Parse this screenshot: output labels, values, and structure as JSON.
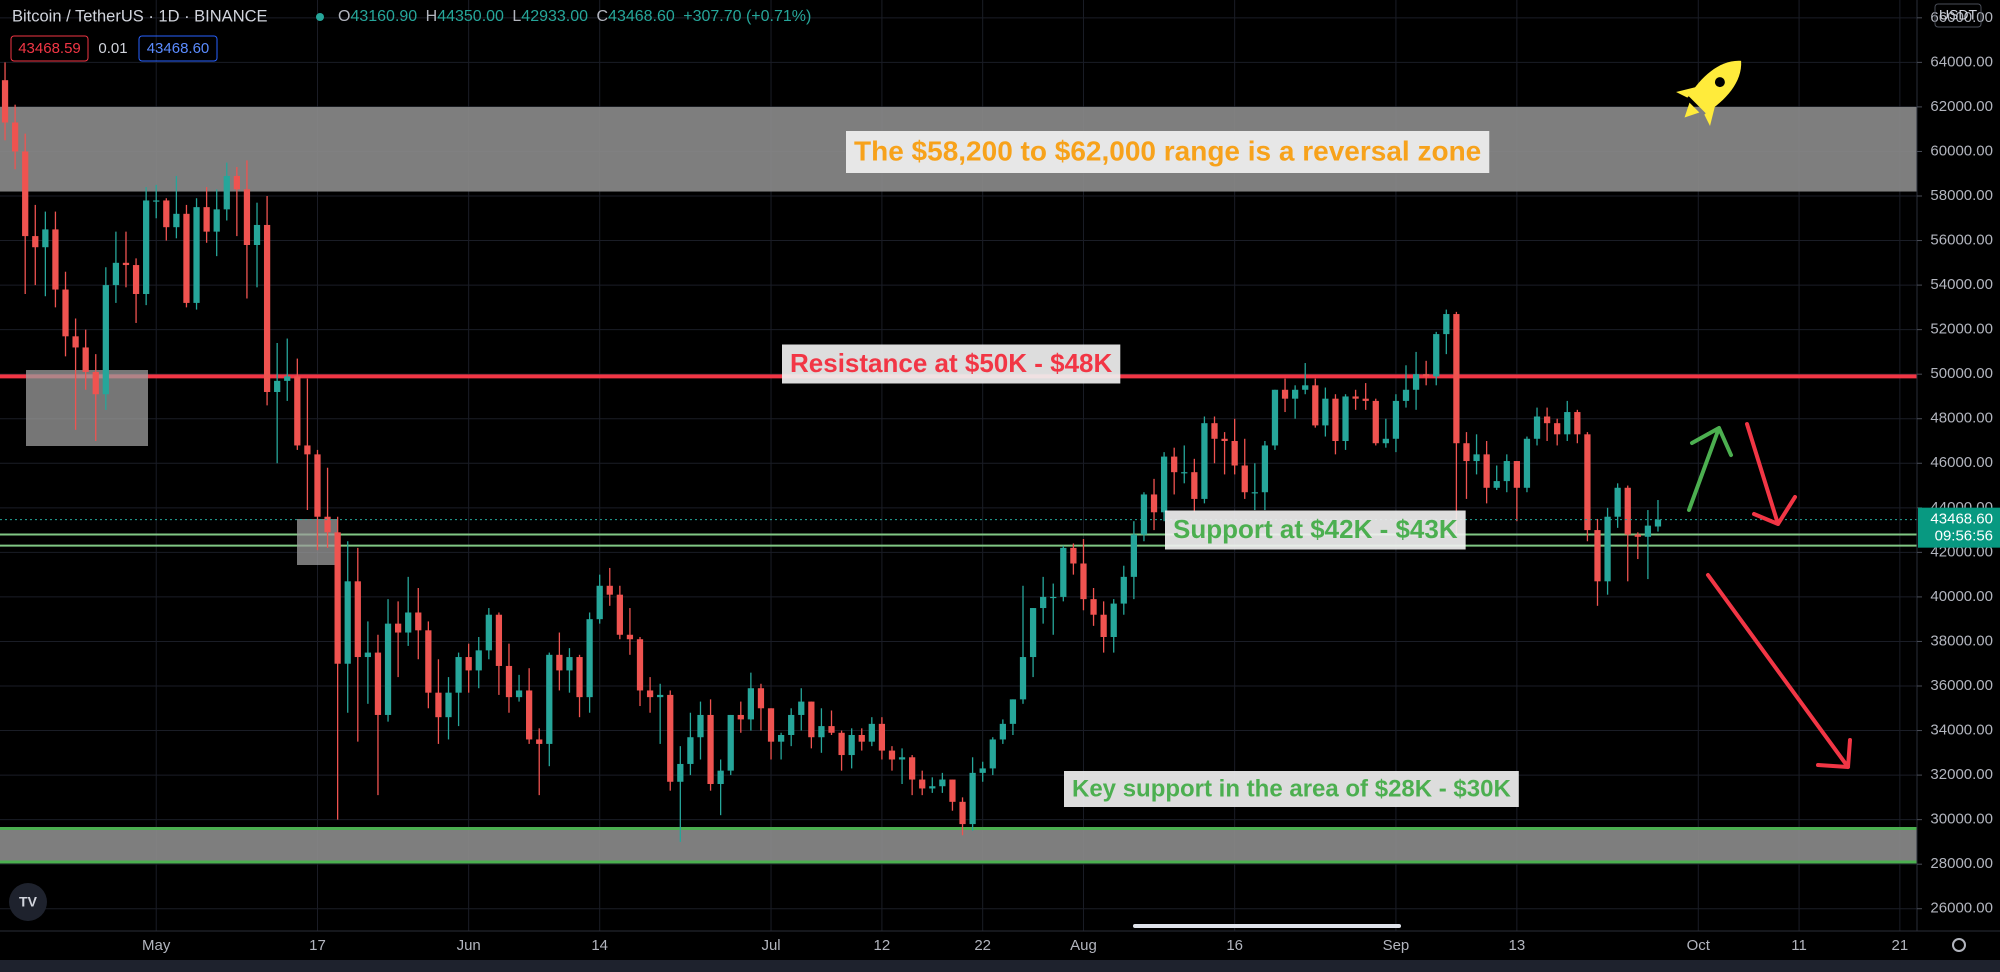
{
  "header": {
    "symbol": "Bitcoin / TetherUS · 1D · BINANCE",
    "ohlc": [
      {
        "label": "O",
        "value": "43160.90"
      },
      {
        "label": "H",
        "value": "44350.00"
      },
      {
        "label": "L",
        "value": "42933.00"
      },
      {
        "label": "C",
        "value": "43468.60"
      }
    ],
    "change": "+307.70 (+0.71%)",
    "badges": [
      "43468.59",
      "0.01",
      "43468.60"
    ]
  },
  "price_axis": {
    "currency": "USDT",
    "last_price": "43468.60",
    "countdown": "09:56:56"
  },
  "chart_data": {
    "type": "candlestick",
    "up_color": "#26a69a",
    "down_color": "#ef5350",
    "xlim": [
      -0.5,
      189.7
    ],
    "xticks": [
      {
        "value": 15,
        "label": "May"
      },
      {
        "value": 31,
        "label": "17"
      },
      {
        "value": 46,
        "label": "Jun"
      },
      {
        "value": 59,
        "label": "14"
      },
      {
        "value": 76,
        "label": "Jul"
      },
      {
        "value": 87,
        "label": "12"
      },
      {
        "value": 97,
        "label": "22"
      },
      {
        "value": 107,
        "label": "Aug"
      },
      {
        "value": 122,
        "label": "16"
      },
      {
        "value": 138,
        "label": "Sep"
      },
      {
        "value": 150,
        "label": "13"
      },
      {
        "value": 168,
        "label": "Oct"
      },
      {
        "value": 178,
        "label": "11"
      },
      {
        "value": 188,
        "label": "21"
      }
    ],
    "ylim": [
      25000,
      66800
    ],
    "yticks": [
      {
        "value": 26000,
        "label": "26000.00"
      },
      {
        "value": 28000,
        "label": "28000.00"
      },
      {
        "value": 30000,
        "label": "30000.00"
      },
      {
        "value": 32000,
        "label": "32000.00"
      },
      {
        "value": 34000,
        "label": "34000.00"
      },
      {
        "value": 36000,
        "label": "36000.00"
      },
      {
        "value": 38000,
        "label": "38000.00"
      },
      {
        "value": 40000,
        "label": "40000.00"
      },
      {
        "value": 42000,
        "label": "42000.00"
      },
      {
        "value": 44000,
        "label": "44000.00"
      },
      {
        "value": 46000,
        "label": "46000.00"
      },
      {
        "value": 48000,
        "label": "48000.00"
      },
      {
        "value": 50000,
        "label": "50000.00"
      },
      {
        "value": 52000,
        "label": "52000.00"
      },
      {
        "value": 54000,
        "label": "54000.00"
      },
      {
        "value": 56000,
        "label": "56000.00"
      },
      {
        "value": 58000,
        "label": "58000.00"
      },
      {
        "value": 60000,
        "label": "60000.00"
      },
      {
        "value": 62000,
        "label": "62000.00"
      },
      {
        "value": 64000,
        "label": "64000.00"
      },
      {
        "value": 66000,
        "label": "66000.00"
      }
    ],
    "grid": true,
    "zones": [
      {
        "low": 58200,
        "high": 62000
      },
      {
        "low": 28100,
        "high": 29600,
        "color": "#4caf50"
      }
    ],
    "levels": [
      {
        "value": 49900,
        "color": "#f23645"
      },
      {
        "value": 42800,
        "color": "#81c784"
      },
      {
        "value": 42300,
        "color": "#81c784"
      }
    ],
    "annotations": [
      {
        "text": "The $58,200 to $62,000 range is a reversal zone",
        "color": "#f7a21b"
      },
      {
        "text": "Resistance at $50K - $48K",
        "color": "#f23645"
      },
      {
        "text": "Support at $42K - $43K",
        "color": "#4caf50"
      },
      {
        "text": "Key support in the area of $28K - $30K",
        "color": "#4caf50"
      }
    ],
    "open": [
      63200,
      61300,
      60000,
      56200,
      55700,
      56500,
      53800,
      51700,
      51200,
      50100,
      49100,
      54000,
      55000,
      54900,
      53600,
      57800,
      57800,
      56600,
      57200,
      53200,
      57500,
      56400,
      57400,
      58900,
      58300,
      55800,
      56700,
      49200,
      49700,
      49900,
      46800,
      46400,
      43600,
      42900,
      37000,
      40700,
      37300,
      37500,
      34700,
      38800,
      38400,
      39300,
      38500,
      35700,
      34600,
      35700,
      37300,
      36700,
      37600,
      39200,
      36900,
      35500,
      35800,
      33600,
      33400,
      37400,
      36700,
      37300,
      35500,
      39000,
      40500,
      40100,
      38300,
      38100,
      35800,
      35500,
      35600,
      31700,
      32500,
      33700,
      34700,
      31600,
      32200,
      34700,
      34500,
      35900,
      35000,
      33500,
      33800,
      34700,
      35300,
      33700,
      34200,
      33900,
      32900,
      33800,
      33500,
      34300,
      33100,
      32700,
      32800,
      31800,
      31400,
      31500,
      31800,
      30800,
      29800,
      32100,
      32300,
      33600,
      34300,
      35400,
      37300,
      39500,
      40000,
      40000,
      42200,
      41500,
      39900,
      39200,
      38200,
      39700,
      40900,
      42800,
      44600,
      43800,
      46300,
      45600,
      45600,
      44400,
      47800,
      47100,
      47000,
      45900,
      44700,
      44700,
      46800,
      49300,
      48900,
      49300,
      49500,
      47700,
      48900,
      47000,
      49000,
      48900,
      48800,
      46900,
      47100,
      48800,
      49300,
      50000,
      49900,
      51800,
      52700,
      46900,
      46100,
      46400,
      44900,
      45200,
      46100,
      44900,
      47100,
      48100,
      47800,
      47300,
      48300,
      47300,
      43000,
      40700,
      43600,
      44900,
      42800,
      42700,
      43160.9
    ],
    "high": [
      64000,
      62100,
      60800,
      57600,
      57300,
      57300,
      54600,
      52500,
      52000,
      50900,
      54800,
      56400,
      56400,
      55200,
      58400,
      58500,
      57900,
      58900,
      57600,
      57900,
      58400,
      58300,
      59500,
      59300,
      59600,
      57700,
      58000,
      51400,
      51600,
      50700,
      49800,
      46600,
      45800,
      43600,
      42500,
      42200,
      38900,
      38300,
      39900,
      39800,
      40900,
      40400,
      38900,
      37200,
      36400,
      37500,
      37900,
      38200,
      39500,
      39300,
      37900,
      36500,
      36800,
      34100,
      37500,
      38400,
      37700,
      37400,
      39300,
      41000,
      41300,
      40500,
      39500,
      38200,
      36400,
      36100,
      35800,
      33300,
      34800,
      35300,
      35400,
      32700,
      34700,
      35300,
      36600,
      36100,
      35000,
      33900,
      35000,
      35900,
      35300,
      35000,
      34900,
      34000,
      34100,
      34100,
      34600,
      34600,
      33300,
      33200,
      32900,
      32200,
      31900,
      32100,
      31800,
      31000,
      32800,
      32600,
      33700,
      34500,
      35400,
      40500,
      39500,
      40900,
      40600,
      42300,
      42400,
      42600,
      40400,
      39800,
      39900,
      41400,
      43400,
      44700,
      45300,
      46500,
      46700,
      46800,
      46200,
      48100,
      48100,
      47400,
      48000,
      47100,
      46000,
      47000,
      49300,
      49800,
      49500,
      50500,
      49800,
      49400,
      49100,
      49100,
      49300,
      49600,
      48900,
      48000,
      49100,
      50400,
      51000,
      50600,
      51900,
      52900,
      52800,
      47400,
      47300,
      47000,
      45900,
      46400,
      46100,
      47200,
      48500,
      48500,
      48000,
      48800,
      48400,
      47400,
      43500,
      44000,
      45100,
      45000,
      42900,
      43900,
      44350
    ],
    "low": [
      60500,
      59200,
      53600,
      54000,
      53500,
      53000,
      50800,
      47500,
      49300,
      47000,
      48400,
      53200,
      53900,
      52300,
      53100,
      57000,
      56000,
      56100,
      53000,
      52900,
      55900,
      55300,
      56900,
      56200,
      53400,
      53900,
      48600,
      46000,
      48800,
      46600,
      43900,
      42100,
      42200,
      30000,
      34800,
      33500,
      35200,
      31100,
      34400,
      36400,
      37800,
      37200,
      35000,
      33400,
      33600,
      34200,
      35700,
      35900,
      37200,
      35600,
      34800,
      35300,
      33400,
      31100,
      32400,
      35800,
      35700,
      34600,
      34800,
      38800,
      39600,
      38100,
      37400,
      35100,
      34800,
      33400,
      31300,
      29000,
      32000,
      32700,
      31300,
      30200,
      32000,
      33900,
      34000,
      34000,
      32700,
      32700,
      33300,
      34000,
      33200,
      33000,
      33800,
      32200,
      32300,
      33100,
      33300,
      32700,
      32200,
      31600,
      31100,
      31100,
      31200,
      31200,
      30400,
      29300,
      29500,
      31700,
      32000,
      33400,
      33800,
      35200,
      36400,
      38800,
      38300,
      39800,
      41000,
      39400,
      38700,
      37500,
      37500,
      39200,
      39900,
      42500,
      43000,
      43400,
      44600,
      45100,
      43800,
      44200,
      46000,
      45500,
      45500,
      44400,
      43900,
      43900,
      46600,
      48300,
      48000,
      49100,
      47600,
      47200,
      46400,
      46600,
      48400,
      48400,
      46800,
      46700,
      46500,
      48500,
      48400,
      49500,
      49500,
      50900,
      42800,
      44400,
      45500,
      44200,
      44800,
      44700,
      43400,
      44700,
      46800,
      47000,
      46800,
      47000,
      46900,
      42500,
      39600,
      40100,
      43100,
      40700,
      41700,
      40800,
      42933
    ],
    "close": [
      61300,
      60000,
      56200,
      55700,
      56500,
      53800,
      51700,
      51200,
      50100,
      49100,
      54000,
      55000,
      54900,
      53600,
      57800,
      57800,
      56600,
      57200,
      53200,
      57500,
      56400,
      57400,
      58900,
      58300,
      55800,
      56700,
      49200,
      49700,
      49900,
      46800,
      46400,
      43600,
      42900,
      37000,
      40700,
      37300,
      37500,
      34700,
      38800,
      38400,
      39300,
      38500,
      35700,
      34600,
      35700,
      37300,
      36700,
      37600,
      39200,
      36900,
      35500,
      35800,
      33600,
      33400,
      37400,
      36700,
      37300,
      35500,
      39000,
      40500,
      40100,
      38300,
      38100,
      35800,
      35500,
      35600,
      31700,
      32500,
      33700,
      34700,
      31600,
      32200,
      34700,
      34500,
      35900,
      35000,
      33500,
      33800,
      34700,
      35300,
      33700,
      34200,
      33900,
      32900,
      33800,
      33500,
      34300,
      33100,
      32700,
      32800,
      31800,
      31400,
      31500,
      31800,
      30800,
      29800,
      32100,
      32300,
      33600,
      34300,
      35400,
      37300,
      39500,
      40000,
      40000,
      42200,
      41500,
      39900,
      39200,
      38200,
      39700,
      40900,
      42800,
      44600,
      43800,
      46300,
      45600,
      45600,
      44400,
      47800,
      47100,
      47000,
      45900,
      44700,
      44700,
      46800,
      49300,
      48900,
      49300,
      49500,
      47700,
      48900,
      47000,
      49000,
      48900,
      48800,
      46900,
      47100,
      48800,
      49300,
      50000,
      49900,
      51800,
      52700,
      46900,
      46100,
      46400,
      44900,
      45200,
      46100,
      44900,
      47100,
      48100,
      47800,
      47300,
      48300,
      47300,
      43000,
      40700,
      43600,
      44900,
      42800,
      42700,
      43200,
      43468.6
    ]
  }
}
